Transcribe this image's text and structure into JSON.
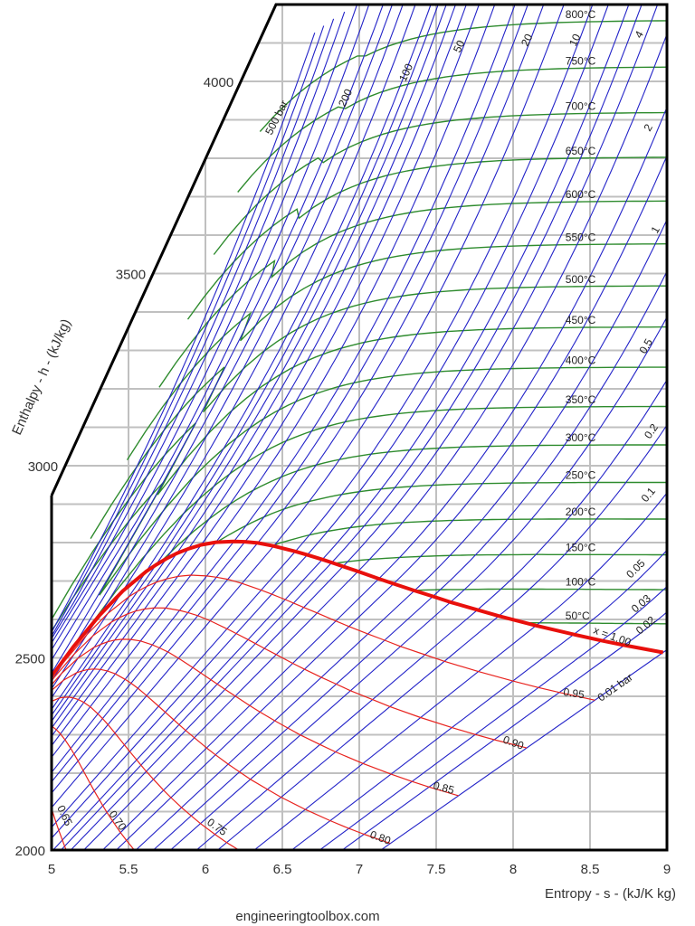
{
  "chart_data": {
    "type": "line",
    "title": "",
    "xlabel": "Entropy - s - (kJ/K kg)",
    "ylabel": "Enthalpy - h - (kJ/kg)",
    "xlim": [
      5,
      9
    ],
    "ylim": [
      2000,
      4200
    ],
    "x_ticks": [
      "5",
      "5.5",
      "6",
      "6.5",
      "7",
      "7.5",
      "8",
      "8.5",
      "9"
    ],
    "y_ticks": [
      "2000",
      "2500",
      "3000",
      "3500",
      "4000"
    ],
    "grid": true,
    "isobars": {
      "unit": "bar",
      "values": [
        0.01,
        0.02,
        0.03,
        0.05,
        0.1,
        0.2,
        0.3,
        0.5,
        0.7,
        1,
        1.5,
        2,
        3,
        4,
        5,
        6,
        8,
        10,
        15,
        20,
        25,
        30,
        40,
        50,
        60,
        70,
        80,
        90,
        100,
        125,
        150,
        175,
        200,
        250,
        300,
        350,
        400,
        450,
        500
      ],
      "labels": [
        {
          "p": 500,
          "text": "500 bar"
        },
        {
          "p": 200,
          "text": "200"
        },
        {
          "p": 100,
          "text": "100"
        },
        {
          "p": 50,
          "text": "50"
        },
        {
          "p": 20,
          "text": "20"
        },
        {
          "p": 10,
          "text": "10"
        },
        {
          "p": 4,
          "text": "4"
        },
        {
          "p": 2,
          "text": "2"
        },
        {
          "p": 1,
          "text": "1"
        },
        {
          "p": 0.5,
          "text": "0.5"
        },
        {
          "p": 0.2,
          "text": "0.2"
        },
        {
          "p": 0.1,
          "text": "0.1"
        },
        {
          "p": 0.05,
          "text": "0.05"
        },
        {
          "p": 0.03,
          "text": "0.03"
        },
        {
          "p": 0.02,
          "text": "0.02"
        },
        {
          "p": 0.01,
          "text": "0.01 bar"
        }
      ]
    },
    "isotherms": {
      "unit": "°C",
      "values": [
        50,
        100,
        150,
        200,
        250,
        300,
        350,
        400,
        450,
        500,
        550,
        600,
        650,
        700,
        750,
        800
      ],
      "labels": [
        "50°C",
        "100°C",
        "150°C",
        "200°C",
        "250°C",
        "300°C",
        "350°C",
        "400°C",
        "450°C",
        "500°C",
        "550°C",
        "600°C",
        "650°C",
        "700°C",
        "750°C",
        "800°C"
      ]
    },
    "quality_lines": {
      "values": [
        1.0,
        0.95,
        0.9,
        0.85,
        0.8,
        0.75,
        0.7,
        0.65
      ],
      "labels": [
        "x = 1.00",
        "0.95",
        "0.90",
        "0.85",
        "0.80",
        "0.75",
        "0.70",
        "0.65"
      ]
    },
    "colors": {
      "isobar": "#2323c8",
      "isotherm": "#2e8b2e",
      "quality": "#e8231e",
      "saturation": "#e8100c",
      "grid": "#c0c0c0",
      "frame": "#000000"
    }
  },
  "footer": {
    "source": "engineeringtoolbox.com"
  }
}
